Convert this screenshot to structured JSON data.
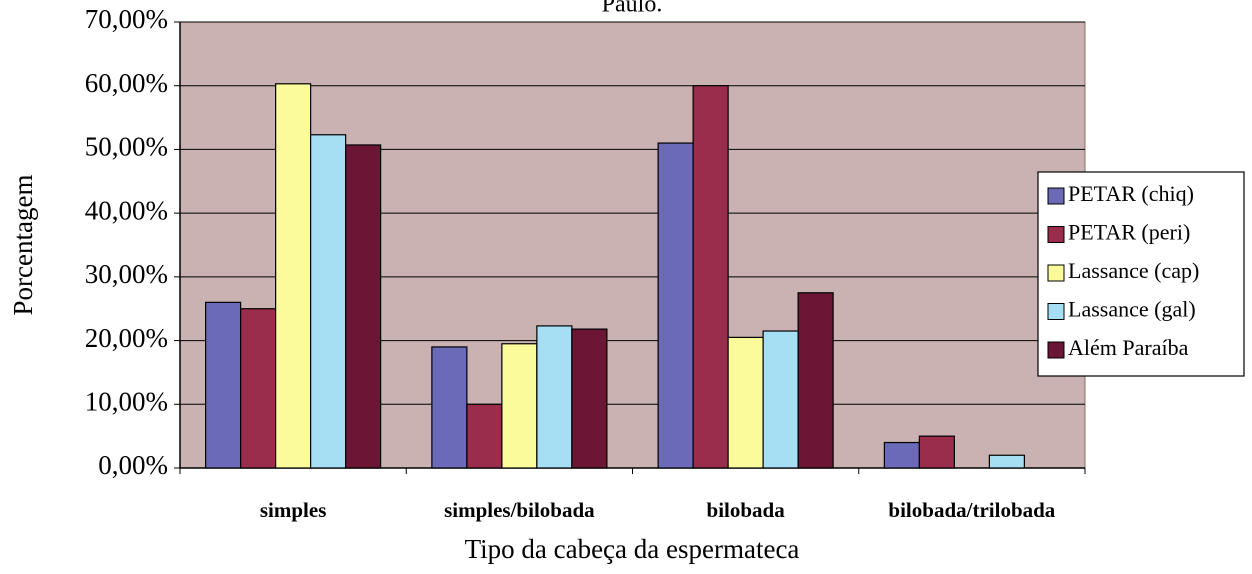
{
  "chart_data": {
    "type": "bar",
    "title": "Paulo.",
    "x_label": "Tipo da cabeça da espermateca",
    "y_label": "Porcentagem",
    "categories": [
      "simples",
      "simples/bilobada",
      "bilobada",
      "bilobada/trilobada"
    ],
    "series": [
      {
        "name": "PETAR (chiq)",
        "color": "#6a6ab8",
        "values": [
          26,
          19,
          51,
          4
        ]
      },
      {
        "name": "PETAR (peri)",
        "color": "#9a2c4c",
        "values": [
          25,
          10,
          60,
          5
        ]
      },
      {
        "name": "Lassance (cap)",
        "color": "#fbfb9c",
        "values": [
          60.3,
          19.5,
          20.5,
          0
        ]
      },
      {
        "name": "Lassance (gal)",
        "color": "#a6def3",
        "values": [
          52.3,
          22.3,
          21.5,
          2
        ]
      },
      {
        "name": "Além Paraíba",
        "color": "#6c1636",
        "values": [
          50.7,
          21.8,
          27.5,
          0
        ]
      }
    ],
    "ylim": [
      0,
      70
    ],
    "yticks": [
      {
        "value": 0,
        "label": "0,00%"
      },
      {
        "value": 10,
        "label": "10,00%"
      },
      {
        "value": 20,
        "label": "20,00%"
      },
      {
        "value": 30,
        "label": "30,00%"
      },
      {
        "value": 40,
        "label": "40,00%"
      },
      {
        "value": 50,
        "label": "50,00%"
      },
      {
        "value": 60,
        "label": "60,00%"
      },
      {
        "value": 70,
        "label": "70,00%"
      }
    ],
    "grid": true,
    "legend": "right",
    "plot_background": "#c9b2b1"
  }
}
